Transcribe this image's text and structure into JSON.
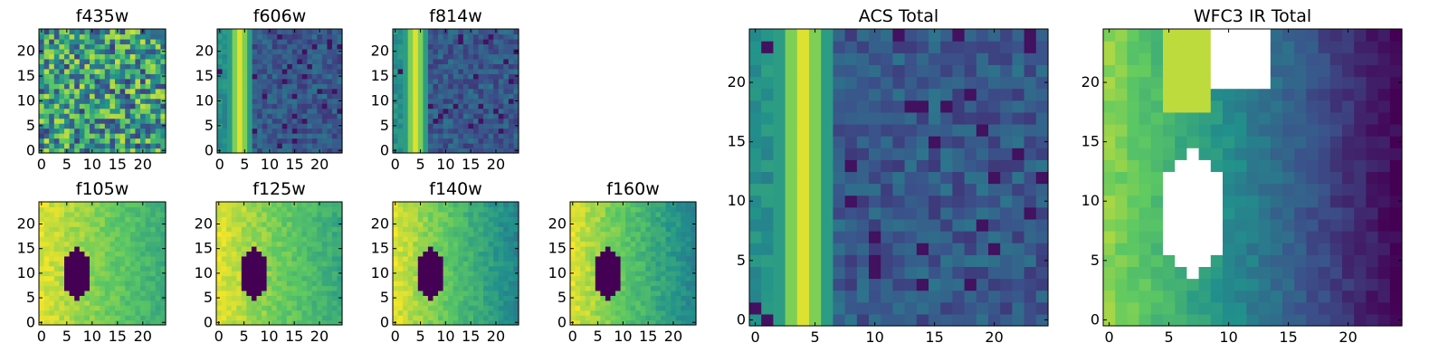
{
  "figure": {
    "colormap": [
      "#440154",
      "#3b528b",
      "#21918c",
      "#5ec962",
      "#fde725"
    ],
    "pixel_grid": [
      25,
      25
    ]
  },
  "chart_data": [
    {
      "type": "heatmap",
      "title": "f435w",
      "xticks": [
        "0",
        "5",
        "10",
        "15",
        "20"
      ],
      "yticks": [
        "0",
        "5",
        "10",
        "15",
        "20"
      ],
      "xlim": [
        0,
        25
      ],
      "ylim": [
        0,
        25
      ],
      "pattern": "noise",
      "stripe_column": null,
      "mask": "none"
    },
    {
      "type": "heatmap",
      "title": "f606w",
      "xticks": [
        "0",
        "5",
        "10",
        "15",
        "20"
      ],
      "yticks": [
        "0",
        "5",
        "10",
        "15",
        "20"
      ],
      "xlim": [
        0,
        25
      ],
      "ylim": [
        0,
        25
      ],
      "pattern": "stripe",
      "stripe_column": 4,
      "mask": "none"
    },
    {
      "type": "heatmap",
      "title": "f814w",
      "xticks": [
        "0",
        "5",
        "10",
        "15",
        "20"
      ],
      "yticks": [
        "0",
        "5",
        "10",
        "15",
        "20"
      ],
      "xlim": [
        0,
        25
      ],
      "ylim": [
        0,
        25
      ],
      "pattern": "stripe",
      "stripe_column": 4,
      "mask": "none"
    },
    {
      "type": "heatmap",
      "title": "f105w",
      "xticks": [
        "0",
        "5",
        "10",
        "15",
        "20"
      ],
      "yticks": [
        "0",
        "5",
        "10",
        "15",
        "20"
      ],
      "xlim": [
        0,
        25
      ],
      "ylim": [
        0,
        25
      ],
      "pattern": "gradient",
      "stripe_column": null,
      "mask": "dark",
      "gradient_low": 0.62
    },
    {
      "type": "heatmap",
      "title": "f125w",
      "xticks": [
        "0",
        "5",
        "10",
        "15",
        "20"
      ],
      "yticks": [
        "0",
        "5",
        "10",
        "15",
        "20"
      ],
      "xlim": [
        0,
        25
      ],
      "ylim": [
        0,
        25
      ],
      "pattern": "gradient",
      "stripe_column": null,
      "mask": "dark",
      "gradient_low": 0.6
    },
    {
      "type": "heatmap",
      "title": "f140w",
      "xticks": [
        "0",
        "5",
        "10",
        "15",
        "20"
      ],
      "yticks": [
        "0",
        "5",
        "10",
        "15",
        "20"
      ],
      "xlim": [
        0,
        25
      ],
      "ylim": [
        0,
        25
      ],
      "pattern": "gradient",
      "stripe_column": null,
      "mask": "dark",
      "gradient_low": 0.45
    },
    {
      "type": "heatmap",
      "title": "f160w",
      "xticks": [
        "0",
        "5",
        "10",
        "15",
        "20"
      ],
      "yticks": [
        "0",
        "5",
        "10",
        "15",
        "20"
      ],
      "xlim": [
        0,
        25
      ],
      "ylim": [
        0,
        25
      ],
      "pattern": "gradient",
      "stripe_column": null,
      "mask": "dark",
      "gradient_low": 0.45
    },
    {
      "type": "heatmap",
      "title": "ACS Total",
      "xticks": [
        "0",
        "5",
        "10",
        "15",
        "20"
      ],
      "yticks": [
        "0",
        "5",
        "10",
        "15",
        "20"
      ],
      "xlim": [
        0,
        25
      ],
      "ylim": [
        0,
        25
      ],
      "pattern": "stripe",
      "stripe_column": 4,
      "mask": "none"
    },
    {
      "type": "heatmap",
      "title": "WFC3 IR Total",
      "xticks": [
        "0",
        "5",
        "10",
        "15",
        "20"
      ],
      "yticks": [
        "0",
        "5",
        "10",
        "15",
        "20"
      ],
      "xlim": [
        0,
        25
      ],
      "ylim": [
        0,
        25
      ],
      "pattern": "gradient_wide",
      "stripe_column": null,
      "mask": "white"
    }
  ]
}
